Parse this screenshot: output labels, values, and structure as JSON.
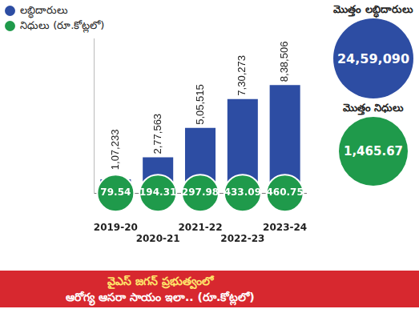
{
  "chart_data": {
    "type": "bar",
    "categories": [
      "2019-20",
      "2020-21",
      "2021-22",
      "2022-23",
      "2023-24"
    ],
    "series": [
      {
        "name": "లబ్ధిదారులు",
        "color": "#2d4da3",
        "values": [
          107233,
          277563,
          505515,
          730273,
          838506
        ],
        "value_labels": [
          "1,07,233",
          "2,77,563",
          "5,05,515",
          "7,30,273",
          "8,38,506"
        ]
      },
      {
        "name": "నిధులు (రూ.కోట్లలో)",
        "color": "#1f9a4b",
        "marker": "circle",
        "values": [
          79.54,
          194.31,
          297.98,
          433.09,
          460.75
        ]
      }
    ],
    "ylim": [
      0,
      1200000
    ],
    "data_labels": true,
    "tick_labels": "x",
    "grid": false,
    "legend": "upper left",
    "totals": [
      {
        "label": "మొత్తం లబ్ధిదారులు",
        "value": 2459090,
        "value_label": "24,59,090",
        "color": "#2d4da3"
      },
      {
        "label": "మొత్తం నిధులు",
        "value": 1465.67,
        "value_label": "1,465.67",
        "color": "#1f9a4b"
      }
    ],
    "footer": [
      "వైఎస్ జగన్ ప్రభుత్వంలో",
      "ఆరోగ్య ఆసరా సాయం ఇలా.. (రూ.కోట్లలో)"
    ]
  }
}
